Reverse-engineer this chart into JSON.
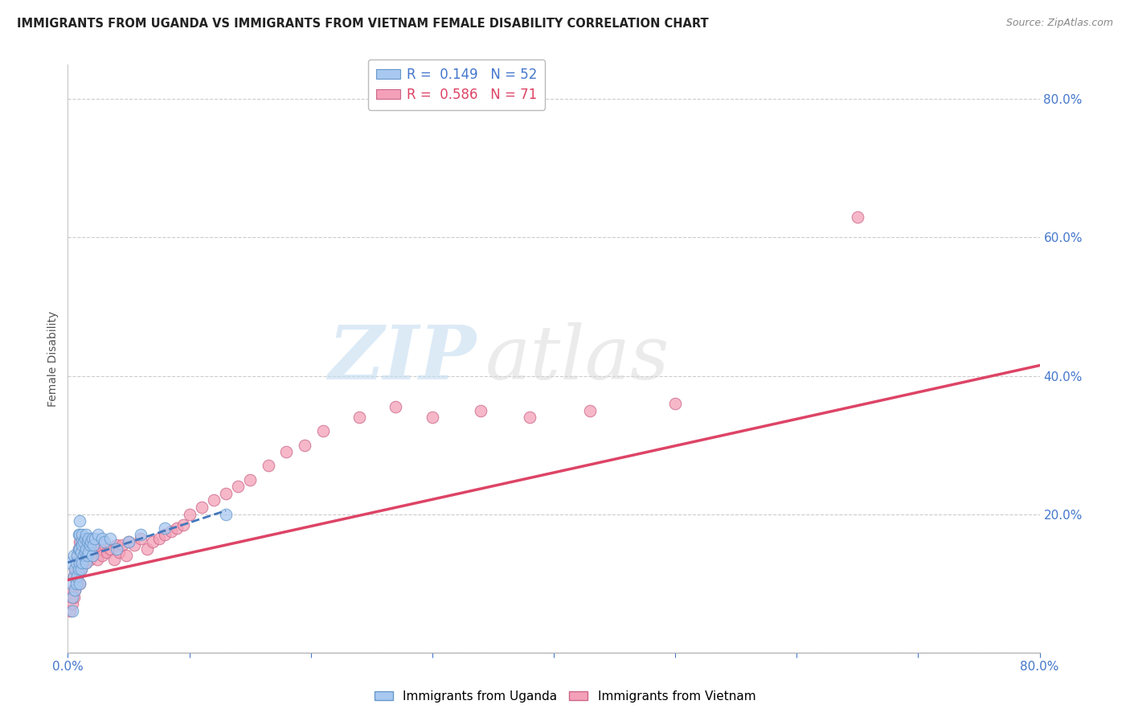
{
  "title": "IMMIGRANTS FROM UGANDA VS IMMIGRANTS FROM VIETNAM FEMALE DISABILITY CORRELATION CHART",
  "source": "Source: ZipAtlas.com",
  "ylabel": "Female Disability",
  "xlim": [
    0.0,
    0.8
  ],
  "ylim": [
    0.0,
    0.85
  ],
  "ytick_positions": [
    0.0,
    0.2,
    0.4,
    0.6,
    0.8
  ],
  "xtick_positions": [
    0.0,
    0.1,
    0.2,
    0.3,
    0.4,
    0.5,
    0.6,
    0.7,
    0.8
  ],
  "uganda_color": "#a8c8f0",
  "vietnam_color": "#f4a0b8",
  "uganda_edge": "#6699cc",
  "vietnam_edge": "#cc6688",
  "trend_uganda_color": "#4477bb",
  "trend_vietnam_color": "#dd4466",
  "R_uganda": 0.149,
  "N_uganda": 52,
  "R_vietnam": 0.586,
  "N_vietnam": 71,
  "watermark_zip": "ZIP",
  "watermark_atlas": "atlas",
  "uganda_x": [
    0.002,
    0.003,
    0.004,
    0.004,
    0.005,
    0.005,
    0.006,
    0.006,
    0.007,
    0.007,
    0.008,
    0.008,
    0.009,
    0.009,
    0.009,
    0.01,
    0.01,
    0.01,
    0.01,
    0.01,
    0.011,
    0.011,
    0.011,
    0.012,
    0.012,
    0.012,
    0.013,
    0.013,
    0.014,
    0.014,
    0.015,
    0.015,
    0.015,
    0.016,
    0.016,
    0.017,
    0.017,
    0.018,
    0.019,
    0.02,
    0.02,
    0.021,
    0.022,
    0.025,
    0.028,
    0.03,
    0.035,
    0.04,
    0.05,
    0.06,
    0.08,
    0.13
  ],
  "uganda_y": [
    0.13,
    0.1,
    0.08,
    0.06,
    0.11,
    0.14,
    0.09,
    0.12,
    0.1,
    0.13,
    0.11,
    0.14,
    0.12,
    0.15,
    0.17,
    0.1,
    0.13,
    0.15,
    0.17,
    0.19,
    0.12,
    0.145,
    0.16,
    0.13,
    0.155,
    0.17,
    0.14,
    0.16,
    0.145,
    0.165,
    0.13,
    0.15,
    0.17,
    0.14,
    0.16,
    0.145,
    0.165,
    0.155,
    0.16,
    0.14,
    0.165,
    0.155,
    0.165,
    0.17,
    0.165,
    0.16,
    0.165,
    0.15,
    0.16,
    0.17,
    0.18,
    0.2
  ],
  "vietnam_x": [
    0.002,
    0.003,
    0.004,
    0.004,
    0.005,
    0.005,
    0.006,
    0.006,
    0.007,
    0.007,
    0.008,
    0.008,
    0.009,
    0.009,
    0.01,
    0.01,
    0.01,
    0.011,
    0.011,
    0.012,
    0.012,
    0.013,
    0.013,
    0.014,
    0.015,
    0.015,
    0.016,
    0.017,
    0.018,
    0.019,
    0.02,
    0.022,
    0.024,
    0.026,
    0.028,
    0.03,
    0.032,
    0.035,
    0.038,
    0.04,
    0.042,
    0.045,
    0.048,
    0.05,
    0.055,
    0.06,
    0.065,
    0.07,
    0.075,
    0.08,
    0.085,
    0.09,
    0.095,
    0.1,
    0.11,
    0.12,
    0.13,
    0.14,
    0.15,
    0.165,
    0.18,
    0.195,
    0.21,
    0.24,
    0.27,
    0.3,
    0.34,
    0.38,
    0.43,
    0.5,
    0.65
  ],
  "vietnam_y": [
    0.06,
    0.08,
    0.07,
    0.09,
    0.08,
    0.11,
    0.09,
    0.12,
    0.1,
    0.13,
    0.11,
    0.14,
    0.12,
    0.15,
    0.1,
    0.13,
    0.16,
    0.12,
    0.15,
    0.13,
    0.16,
    0.14,
    0.165,
    0.15,
    0.13,
    0.16,
    0.145,
    0.155,
    0.135,
    0.15,
    0.145,
    0.155,
    0.135,
    0.15,
    0.14,
    0.155,
    0.145,
    0.15,
    0.135,
    0.155,
    0.145,
    0.155,
    0.14,
    0.16,
    0.155,
    0.165,
    0.15,
    0.16,
    0.165,
    0.17,
    0.175,
    0.18,
    0.185,
    0.2,
    0.21,
    0.22,
    0.23,
    0.24,
    0.25,
    0.27,
    0.29,
    0.3,
    0.32,
    0.34,
    0.355,
    0.34,
    0.35,
    0.34,
    0.35,
    0.36,
    0.63
  ],
  "uganda_trend_x": [
    0.0,
    0.13
  ],
  "uganda_trend_y": [
    0.13,
    0.205
  ],
  "vietnam_trend_x": [
    0.0,
    0.8
  ],
  "vietnam_trend_y": [
    0.105,
    0.415
  ]
}
